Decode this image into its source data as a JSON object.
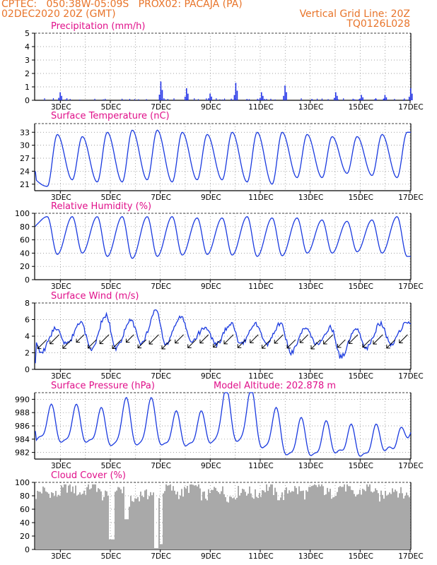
{
  "header": {
    "line1": "CPTEC:   050:38W-05:09S   PROX02: PACAJA (PA)",
    "line2_left": "02DEC2020 20Z (GMT)",
    "line2_right": "Vertical Grid Line: 20Z",
    "line3_right": "TQ0126L028"
  },
  "colors": {
    "header": "#e8742a",
    "titles": "#e0108a",
    "series": "#1a3adf",
    "bars": "#2233e8",
    "cloud": "#a9a9a9",
    "grid": "#808080"
  },
  "x_ticks": [
    "3DEC",
    "5DEC",
    "7DEC",
    "9DEC",
    "11DEC",
    "13DEC",
    "15DEC",
    "17DEC"
  ],
  "chart_data": [
    {
      "type": "bar",
      "title": "Precipitation (mm/h)",
      "x": [
        "3DEC",
        "7DEC",
        "8DEC",
        "9DEC",
        "10DEC",
        "11DEC",
        "12DEC",
        "14DEC",
        "15DEC",
        "16DEC",
        "17DEC"
      ],
      "values": [
        0.6,
        1.4,
        0.9,
        0.5,
        1.3,
        0.6,
        1.1,
        0.6,
        0.4,
        0.4,
        0.9
      ],
      "ylim": [
        0,
        5
      ],
      "yticks": [
        0,
        1,
        2,
        3,
        4,
        5
      ]
    },
    {
      "type": "line",
      "title": "Surface Temperature (nC)",
      "x": [
        "2DEC20Z",
        "3DEC",
        "4DEC",
        "5DEC",
        "6DEC",
        "7DEC",
        "8DEC",
        "9DEC",
        "10DEC",
        "11DEC",
        "12DEC",
        "13DEC",
        "14DEC",
        "15DEC",
        "16DEC",
        "17DEC"
      ],
      "max": [
        null,
        32.5,
        32,
        33,
        33.5,
        33.5,
        33,
        32.5,
        33,
        33,
        33,
        32.5,
        32,
        32,
        32.5,
        33
      ],
      "min": [
        24,
        20.5,
        22,
        21.5,
        21.5,
        22,
        21.5,
        22,
        22,
        21.5,
        21,
        22.5,
        22.5,
        23.5,
        23,
        22.5
      ],
      "ylim": [
        19.5,
        35
      ],
      "yticks": [
        21,
        24,
        27,
        30,
        33
      ]
    },
    {
      "type": "line",
      "title": "Relative Humidity (%)",
      "x": [
        "2DEC20Z",
        "3DEC",
        "4DEC",
        "5DEC",
        "6DEC",
        "7DEC",
        "8DEC",
        "9DEC",
        "10DEC",
        "11DEC",
        "12DEC",
        "13DEC",
        "14DEC",
        "15DEC",
        "16DEC",
        "17DEC"
      ],
      "max": [
        100,
        95,
        95,
        95,
        95,
        95,
        95,
        93,
        93,
        95,
        93,
        93,
        90,
        88,
        90,
        95
      ],
      "min": [
        80,
        38,
        40,
        35,
        32,
        35,
        37,
        38,
        37,
        35,
        36,
        40,
        40,
        42,
        40,
        35
      ],
      "ylim": [
        0,
        100
      ],
      "yticks": [
        0,
        20,
        40,
        60,
        80,
        100
      ]
    },
    {
      "type": "line",
      "title": "Surface Wind (m/s)",
      "x": [
        "2DEC20Z",
        "3DEC",
        "4DEC",
        "5DEC",
        "6DEC",
        "7DEC",
        "8DEC",
        "9DEC",
        "10DEC",
        "11DEC",
        "12DEC",
        "13DEC",
        "14DEC",
        "15DEC",
        "16DEC",
        "17DEC"
      ],
      "max": [
        5,
        5,
        5.5,
        6.5,
        6,
        7,
        6.5,
        5,
        5.5,
        5.5,
        5.5,
        5,
        5,
        5,
        5.5,
        5.5
      ],
      "min": [
        0.5,
        2,
        3,
        2.5,
        2.5,
        3,
        3,
        3.5,
        3,
        3,
        3,
        2,
        3,
        1.5,
        2.5,
        3
      ],
      "ylim": [
        0,
        8
      ],
      "yticks": [
        0,
        2,
        4,
        6,
        8
      ],
      "vectors": "wind arrows pointing to the southwest"
    },
    {
      "type": "line",
      "title": "Surface Pressure (hPa)",
      "annotation": "Model Altitude: 202.878 m",
      "x": [
        "2DEC20Z",
        "3DEC",
        "4DEC",
        "5DEC",
        "6DEC",
        "7DEC",
        "8DEC",
        "9DEC",
        "10DEC",
        "11DEC",
        "12DEC",
        "13DEC",
        "14DEC",
        "15DEC",
        "16DEC",
        "17DEC"
      ],
      "max": [
        986.5,
        988.5,
        988.5,
        988,
        989.5,
        989.5,
        987.5,
        987.5,
        991,
        991,
        988,
        986.5,
        986,
        985.5,
        985.5,
        985
      ],
      "min": [
        985,
        983.5,
        983,
        983,
        982.5,
        982.5,
        982.5,
        982.5,
        983,
        983,
        982,
        981,
        981,
        981.5,
        981,
        982
      ],
      "ylim": [
        981,
        991
      ],
      "yticks": [
        982,
        984,
        986,
        988,
        990
      ]
    },
    {
      "type": "bar",
      "title": "Cloud Cover (%)",
      "x": [
        "2DEC20Z",
        "3DEC",
        "4DEC",
        "5DEC",
        "6DEC",
        "7DEC",
        "8DEC",
        "9DEC",
        "10DEC",
        "11DEC",
        "12DEC",
        "13DEC",
        "14DEC",
        "15DEC",
        "16DEC",
        "17DEC"
      ],
      "values": [
        85,
        90,
        93,
        88,
        80,
        90,
        92,
        88,
        87,
        90,
        88,
        92,
        92,
        90,
        88,
        90
      ],
      "ylim": [
        0,
        100
      ],
      "yticks": [
        0,
        20,
        40,
        60,
        80,
        100
      ]
    }
  ]
}
